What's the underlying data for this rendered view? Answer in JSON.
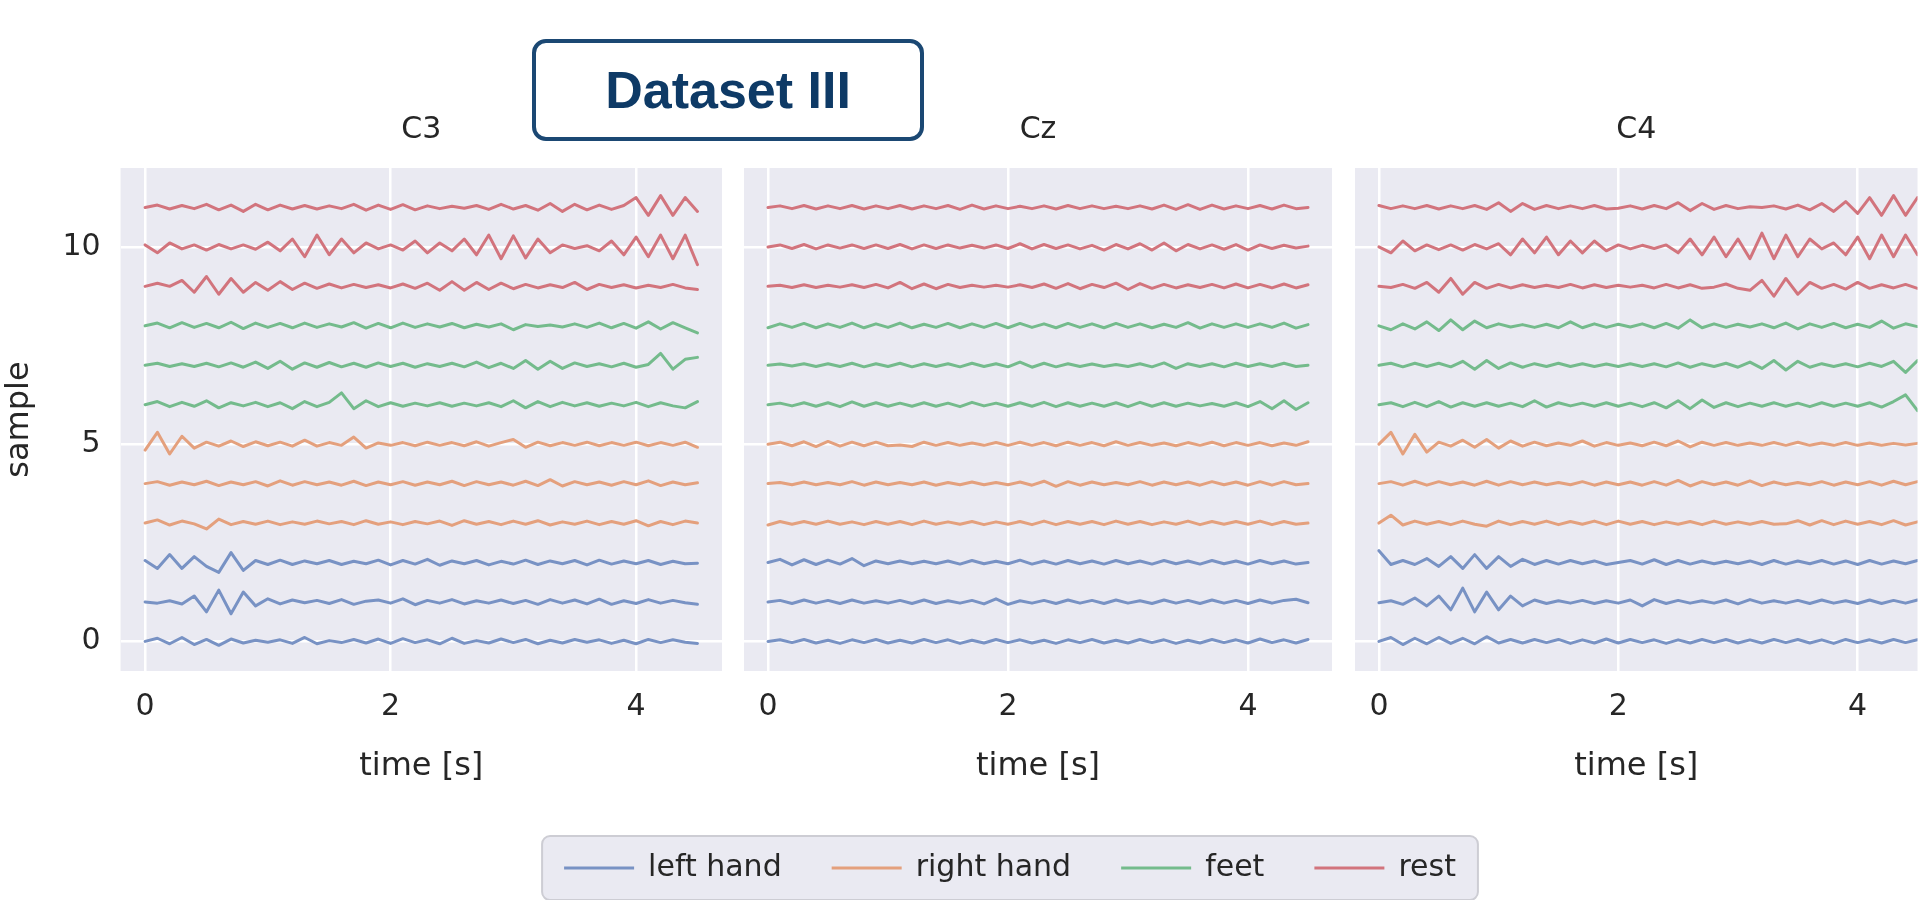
{
  "chart_data": [
    {
      "type": "line",
      "title": "C3",
      "xlabel": "time [s]",
      "ylabel": "sample",
      "annotations": [
        "Dataset III"
      ],
      "grid": true,
      "xlim": [
        -0.2,
        4.7
      ],
      "ylim": [
        -0.75,
        12
      ],
      "xticks": [
        0,
        2,
        4
      ],
      "yticks": [
        0,
        5,
        10
      ],
      "x": [
        0,
        0.1,
        0.2,
        0.3,
        0.4,
        0.5,
        0.6,
        0.7,
        0.8,
        0.9,
        1,
        1.1,
        1.2,
        1.3,
        1.4,
        1.5,
        1.6,
        1.7,
        1.8,
        1.9,
        2,
        2.1,
        2.2,
        2.3,
        2.4,
        2.5,
        2.6,
        2.7,
        2.8,
        2.9,
        3,
        3.1,
        3.2,
        3.3,
        3.4,
        3.5,
        3.6,
        3.7,
        3.8,
        3.9,
        4,
        4.1,
        4.2,
        4.3,
        4.4,
        4.5
      ],
      "series": [
        {
          "color": "#7892c4",
          "values": [
            0,
            0.08,
            -0.06,
            0.1,
            -0.08,
            0.05,
            -0.1,
            0.06,
            -0.04,
            0.03,
            -0.02,
            0.04,
            -0.05,
            0.1,
            -0.06,
            0.02,
            -0.03,
            0.05,
            -0.04,
            0.06,
            -0.05,
            0.07,
            -0.03,
            0.04,
            -0.06,
            0.08,
            -0.05,
            0.02,
            -0.04,
            0.06,
            -0.03,
            0.05,
            -0.06,
            0.03,
            -0.04,
            0.05,
            -0.02,
            0.04,
            -0.05,
            0.03,
            -0.06,
            0.05,
            -0.03,
            0.04,
            -0.02,
            -0.05
          ]
        },
        {
          "color": "#7892c4",
          "values": [
            1,
            0.97,
            1.03,
            0.95,
            1.15,
            0.75,
            1.3,
            0.7,
            1.25,
            0.9,
            1.08,
            0.95,
            1.05,
            0.98,
            1.04,
            0.96,
            1.06,
            0.94,
            1.02,
            1.05,
            0.97,
            1.08,
            0.93,
            1.04,
            0.97,
            1.06,
            0.95,
            1.03,
            0.97,
            1.05,
            0.96,
            1.04,
            0.94,
            1.06,
            0.97,
            1.05,
            0.95,
            1.07,
            0.94,
            1.03,
            0.96,
            1.06,
            0.97,
            1.04,
            0.98,
            0.94
          ]
        },
        {
          "color": "#7892c4",
          "values": [
            2.05,
            1.85,
            2.2,
            1.85,
            2.15,
            1.9,
            1.75,
            2.25,
            1.8,
            2.05,
            1.95,
            2.06,
            1.95,
            2.04,
            1.97,
            2.05,
            1.95,
            2.03,
            1.97,
            2.06,
            1.94,
            2.05,
            1.96,
            2.08,
            1.93,
            2.04,
            1.97,
            2.05,
            1.94,
            2.03,
            1.96,
            2.06,
            1.95,
            2.04,
            1.97,
            2.05,
            1.94,
            2.06,
            1.96,
            2.04,
            1.97,
            2.05,
            1.95,
            2.03,
            1.97,
            1.98
          ]
        },
        {
          "color": "#e4a07d",
          "values": [
            3,
            3.08,
            2.95,
            3.05,
            2.98,
            2.85,
            3.1,
            2.96,
            3.04,
            2.97,
            3.05,
            2.96,
            3.03,
            2.97,
            3.05,
            2.98,
            3.04,
            2.96,
            3.06,
            2.97,
            3.03,
            2.96,
            3.04,
            2.98,
            3.05,
            2.94,
            3.06,
            2.97,
            3.04,
            2.96,
            3.05,
            2.97,
            3.06,
            2.95,
            3.03,
            2.97,
            3.05,
            2.96,
            3.04,
            2.97,
            3.06,
            2.93,
            3.04,
            2.96,
            3.05,
            3
          ]
        },
        {
          "color": "#e4a07d",
          "values": [
            4,
            4.05,
            3.96,
            4.04,
            3.97,
            4.06,
            3.95,
            4.04,
            3.97,
            4.05,
            3.94,
            4.07,
            3.96,
            4.05,
            3.97,
            4.04,
            3.96,
            4.06,
            3.95,
            4.04,
            3.97,
            4.05,
            3.96,
            4.04,
            3.97,
            4.06,
            3.95,
            4.05,
            3.97,
            4.04,
            3.96,
            4.06,
            3.95,
            4.1,
            3.94,
            4.05,
            3.97,
            4.04,
            3.96,
            4.05,
            3.97,
            4.07,
            3.95,
            4.04,
            3.97,
            4.02
          ]
        },
        {
          "color": "#e4a07d",
          "values": [
            4.85,
            5.3,
            4.75,
            5.2,
            4.9,
            5.05,
            4.95,
            5.08,
            4.94,
            5.06,
            4.96,
            5.05,
            4.95,
            5.1,
            4.95,
            5.04,
            4.97,
            5.18,
            4.9,
            5.03,
            4.97,
            5.04,
            4.96,
            5.05,
            4.97,
            5.04,
            4.96,
            5.06,
            4.95,
            5.04,
            5.12,
            4.92,
            5.05,
            4.96,
            5.04,
            4.97,
            5.05,
            4.96,
            5.04,
            4.97,
            5.05,
            4.96,
            5.04,
            4.97,
            5.05,
            4.92
          ]
        },
        {
          "color": "#74bb8c",
          "values": [
            6,
            6.08,
            5.95,
            6.06,
            5.96,
            6.1,
            5.92,
            6.05,
            5.97,
            6.06,
            5.95,
            6.05,
            5.9,
            6.08,
            5.95,
            6.06,
            6.3,
            5.9,
            6.1,
            5.95,
            6.05,
            5.96,
            6.04,
            5.97,
            6.05,
            5.96,
            6.04,
            5.97,
            6.05,
            5.95,
            6.1,
            5.92,
            6.08,
            5.95,
            6.06,
            5.97,
            6.05,
            5.96,
            6.04,
            5.97,
            6.06,
            5.95,
            6.05,
            5.97,
            5.92,
            6.08
          ]
        },
        {
          "color": "#74bb8c",
          "values": [
            7,
            7.05,
            6.97,
            7.04,
            6.97,
            7.05,
            6.96,
            7.06,
            6.95,
            7.08,
            6.92,
            7.1,
            6.9,
            7.06,
            6.95,
            7.07,
            6.96,
            7.05,
            6.95,
            7.06,
            6.97,
            7.05,
            6.95,
            7.04,
            6.97,
            7.05,
            6.96,
            7.08,
            6.94,
            7.05,
            6.92,
            7.12,
            6.9,
            7.1,
            6.92,
            7.06,
            6.97,
            7.04,
            6.96,
            7.05,
            6.95,
            7.02,
            7.3,
            6.9,
            7.15,
            7.2
          ]
        },
        {
          "color": "#74bb8c",
          "values": [
            8,
            8.07,
            7.95,
            8.08,
            7.96,
            8.06,
            7.95,
            8.09,
            7.93,
            8.07,
            7.96,
            8.06,
            7.95,
            8.07,
            7.96,
            8.05,
            7.97,
            8.08,
            7.94,
            8.06,
            7.95,
            8.07,
            7.96,
            8.05,
            7.97,
            8.06,
            7.95,
            8.04,
            7.97,
            8.05,
            7.9,
            8.03,
            7.98,
            8.02,
            7.97,
            8.05,
            7.96,
            8.07,
            7.95,
            8.06,
            7.94,
            8.1,
            7.92,
            8.08,
            7.95,
            7.82
          ]
        },
        {
          "color": "#d2747d",
          "values": [
            9,
            9.08,
            9,
            9.15,
            8.85,
            9.25,
            8.8,
            9.2,
            8.85,
            9.1,
            8.9,
            9.12,
            8.92,
            9.08,
            8.95,
            9.06,
            8.96,
            9.05,
            8.97,
            9.04,
            8.96,
            9.06,
            8.95,
            9.08,
            8.9,
            9.12,
            8.9,
            9.1,
            8.92,
            9.08,
            8.94,
            9.05,
            8.96,
            9.04,
            8.97,
            9.1,
            8.92,
            9.05,
            8.97,
            9.04,
            8.96,
            9.03,
            8.97,
            9.05,
            8.96,
            8.92
          ]
        },
        {
          "color": "#d2747d",
          "values": [
            10.05,
            9.85,
            10.1,
            9.95,
            10.05,
            9.92,
            10.06,
            9.95,
            10.05,
            9.94,
            10.12,
            9.9,
            10.2,
            9.75,
            10.3,
            9.8,
            10.2,
            9.85,
            10.1,
            9.95,
            10.05,
            9.92,
            10.15,
            9.85,
            10.1,
            9.9,
            10.2,
            9.8,
            10.3,
            9.7,
            10.28,
            9.72,
            10.2,
            9.85,
            10.05,
            9.96,
            10.03,
            9.9,
            10.15,
            9.8,
            10.25,
            9.75,
            10.3,
            9.7,
            10.3,
            9.55
          ]
        },
        {
          "color": "#d2747d",
          "values": [
            11,
            11.06,
            10.96,
            11.05,
            10.97,
            11.08,
            10.94,
            11.06,
            10.9,
            11.08,
            10.94,
            11.06,
            10.96,
            11.05,
            10.96,
            11.04,
            10.97,
            11.08,
            10.93,
            11.06,
            10.95,
            11.07,
            10.94,
            11.04,
            10.97,
            11.03,
            10.98,
            11.05,
            10.95,
            11.08,
            10.96,
            11.05,
            10.93,
            11.1,
            10.9,
            11.08,
            10.94,
            11.06,
            10.95,
            11.05,
            11.25,
            10.8,
            11.3,
            10.8,
            11.25,
            10.9
          ]
        }
      ]
    },
    {
      "type": "line",
      "title": "Cz",
      "xlabel": "time [s]",
      "grid": true,
      "legend": "bottom",
      "tick_labels": "x",
      "xlim": [
        -0.2,
        4.7
      ],
      "ylim": [
        -0.75,
        12
      ],
      "xticks": [
        0,
        2,
        4
      ],
      "yticks": [
        0,
        5,
        10
      ],
      "x": [
        0,
        0.1,
        0.2,
        0.3,
        0.4,
        0.5,
        0.6,
        0.7,
        0.8,
        0.9,
        1,
        1.1,
        1.2,
        1.3,
        1.4,
        1.5,
        1.6,
        1.7,
        1.8,
        1.9,
        2,
        2.1,
        2.2,
        2.3,
        2.4,
        2.5,
        2.6,
        2.7,
        2.8,
        2.9,
        3,
        3.1,
        3.2,
        3.3,
        3.4,
        3.5,
        3.6,
        3.7,
        3.8,
        3.9,
        4,
        4.1,
        4.2,
        4.3,
        4.4,
        4.5
      ],
      "series": [
        {
          "name": "left hand",
          "color": "#7892c4",
          "values": [
            0,
            0.04,
            -0.03,
            0.05,
            -0.04,
            0.03,
            -0.05,
            0.04,
            -0.03,
            0.05,
            -0.04,
            0.03,
            -0.04,
            0.05,
            -0.03,
            0.04,
            -0.05,
            0.03,
            -0.04,
            0.05,
            -0.03,
            0.04,
            -0.04,
            0.03,
            -0.05,
            0.04,
            -0.03,
            0.05,
            -0.04,
            0.03,
            -0.04,
            0.05,
            -0.03,
            0.04,
            -0.05,
            0.03,
            -0.04,
            0.05,
            -0.03,
            0.04,
            -0.04,
            0.06,
            -0.03,
            0.04,
            -0.04,
            0.05
          ]
        },
        {
          "color": "#7892c4",
          "values": [
            1,
            1.04,
            0.96,
            1.05,
            0.97,
            1.04,
            0.96,
            1.05,
            0.97,
            1.03,
            0.97,
            1.04,
            0.96,
            1.05,
            0.96,
            1.03,
            0.97,
            1.04,
            0.95,
            1.08,
            0.94,
            1.03,
            0.97,
            1.04,
            0.96,
            1.05,
            0.97,
            1.04,
            0.96,
            1.05,
            0.97,
            1.03,
            0.96,
            1.05,
            0.97,
            1.04,
            0.96,
            1.05,
            0.97,
            1.04,
            0.96,
            1.05,
            0.97,
            1.04,
            1.07,
            0.98
          ]
        },
        {
          "color": "#7892c4",
          "values": [
            2,
            2.08,
            1.94,
            2.07,
            1.95,
            2.06,
            1.96,
            2.1,
            1.92,
            2.04,
            1.97,
            2.04,
            1.97,
            2.03,
            1.97,
            2.04,
            1.96,
            2.05,
            1.97,
            2.03,
            1.97,
            2.06,
            1.96,
            2.04,
            1.96,
            2.05,
            1.97,
            2.04,
            1.96,
            2.05,
            1.97,
            2.04,
            1.96,
            2.05,
            1.97,
            2.04,
            1.96,
            2.05,
            1.97,
            2.04,
            1.96,
            2.05,
            1.97,
            2.04,
            1.96,
            2
          ]
        },
        {
          "name": "right hand",
          "color": "#e4a07d",
          "values": [
            2.95,
            3.04,
            2.97,
            3.04,
            2.97,
            3.05,
            2.97,
            3.03,
            2.96,
            3.04,
            2.97,
            3.04,
            2.96,
            3.05,
            2.97,
            3.03,
            2.97,
            3.04,
            2.96,
            3.03,
            2.97,
            3.04,
            2.96,
            3.05,
            2.96,
            3.04,
            2.97,
            3.04,
            2.96,
            3.05,
            2.97,
            3.04,
            2.96,
            3.03,
            2.97,
            3.05,
            2.96,
            3.04,
            2.97,
            3.04,
            2.97,
            3.05,
            2.96,
            3.04,
            2.97,
            3
          ]
        },
        {
          "color": "#e4a07d",
          "values": [
            4,
            4.03,
            3.97,
            4.04,
            3.97,
            4.03,
            3.97,
            4.05,
            3.96,
            4.04,
            3.97,
            4.03,
            3.97,
            4.04,
            3.96,
            4.03,
            3.97,
            4.04,
            3.97,
            4.03,
            3.97,
            4.04,
            3.96,
            4.06,
            3.93,
            4.05,
            3.96,
            4.04,
            3.97,
            4.03,
            3.97,
            4.05,
            3.96,
            4.04,
            3.97,
            4.04,
            3.96,
            4.05,
            3.97,
            4.04,
            3.96,
            4.05,
            3.96,
            4.05,
            3.97,
            4
          ]
        },
        {
          "color": "#e4a07d",
          "values": [
            5,
            5.05,
            4.96,
            5.06,
            4.94,
            5.07,
            4.95,
            5.05,
            4.96,
            5.05,
            4.96,
            4.98,
            4.94,
            5.05,
            4.97,
            5.04,
            4.97,
            5.03,
            4.97,
            5.04,
            4.97,
            5.05,
            4.97,
            5.04,
            4.96,
            5.05,
            4.97,
            5.04,
            4.96,
            5.06,
            4.97,
            5.04,
            4.97,
            5.03,
            4.96,
            5.04,
            4.97,
            5.05,
            4.96,
            5.04,
            4.97,
            5.04,
            4.96,
            5.03,
            4.97,
            5.06
          ]
        },
        {
          "name": "feet",
          "color": "#74bb8c",
          "values": [
            6,
            6.04,
            5.97,
            6.05,
            5.96,
            6.05,
            5.95,
            6.07,
            5.96,
            6.05,
            5.96,
            6.04,
            5.96,
            6.05,
            5.96,
            6.04,
            5.95,
            6.06,
            5.97,
            6.04,
            5.96,
            6.05,
            5.96,
            6.06,
            5.95,
            6.05,
            5.96,
            6.04,
            5.96,
            6.05,
            5.95,
            6.06,
            5.96,
            6.05,
            5.96,
            6.04,
            5.97,
            6.03,
            5.96,
            6.05,
            5.95,
            6.08,
            5.9,
            6.1,
            5.88,
            6.05
          ]
        },
        {
          "color": "#74bb8c",
          "values": [
            7,
            7.03,
            6.98,
            7.04,
            6.97,
            7.04,
            6.97,
            7.05,
            6.96,
            7.04,
            6.97,
            7.05,
            6.96,
            7.04,
            6.97,
            7.04,
            6.96,
            7.05,
            6.97,
            7.04,
            6.96,
            7.08,
            6.95,
            7.05,
            6.96,
            7.04,
            6.97,
            7.03,
            6.97,
            7.02,
            6.97,
            7.04,
            6.96,
            7.06,
            6.92,
            7.04,
            6.97,
            7.04,
            6.96,
            7.05,
            6.97,
            7.04,
            6.97,
            7.05,
            6.97,
            7
          ]
        },
        {
          "color": "#74bb8c",
          "values": [
            7.95,
            8.05,
            7.96,
            8.06,
            7.95,
            8.05,
            7.96,
            8.07,
            7.95,
            8.05,
            7.96,
            8.07,
            7.95,
            8.04,
            7.96,
            8.06,
            7.95,
            8.05,
            7.96,
            8.06,
            7.95,
            8.06,
            7.96,
            8.05,
            7.95,
            8.06,
            7.96,
            8.05,
            7.95,
            8.06,
            7.96,
            8.05,
            7.95,
            8.04,
            7.96,
            8.08,
            7.94,
            8.05,
            7.96,
            8.05,
            7.96,
            8.05,
            7.96,
            8.07,
            7.94,
            8.03
          ]
        },
        {
          "name": "rest",
          "color": "#d2747d",
          "values": [
            9,
            9.03,
            8.97,
            9.04,
            8.97,
            9.03,
            8.98,
            9.04,
            8.97,
            9.05,
            8.96,
            9.1,
            8.94,
            9.06,
            8.94,
            9.05,
            8.97,
            9.03,
            8.98,
            9.03,
            8.98,
            9.04,
            8.97,
            9.06,
            8.95,
            9.07,
            8.94,
            9.05,
            8.97,
            9.08,
            8.92,
            9.07,
            8.95,
            9.05,
            8.96,
            9.04,
            8.97,
            9.05,
            8.96,
            9.06,
            8.96,
            9.05,
            8.96,
            9.06,
            8.96,
            9.04
          ]
        },
        {
          "color": "#d2747d",
          "values": [
            10,
            10.05,
            9.96,
            10.06,
            9.95,
            10.05,
            9.97,
            10.05,
            9.96,
            10.05,
            9.96,
            10.06,
            9.95,
            10.05,
            9.96,
            10.05,
            9.97,
            10.04,
            9.97,
            10.05,
            9.96,
            10.08,
            9.95,
            10.06,
            9.96,
            10.05,
            9.95,
            10.04,
            9.92,
            10.06,
            9.95,
            10.08,
            9.92,
            10.1,
            9.9,
            10.06,
            9.95,
            10.05,
            9.94,
            10.06,
            9.92,
            10.05,
            9.96,
            10.04,
            9.97,
            10.02
          ]
        },
        {
          "color": "#d2747d",
          "values": [
            11,
            11.04,
            10.97,
            11.05,
            10.96,
            11.04,
            10.97,
            11.05,
            10.96,
            11.04,
            10.97,
            11.05,
            10.96,
            11.04,
            10.97,
            11.05,
            10.95,
            11.06,
            10.96,
            11.04,
            10.97,
            11.03,
            10.97,
            11.04,
            10.96,
            11.05,
            10.97,
            11.04,
            10.97,
            11.03,
            10.97,
            11.04,
            10.96,
            11.06,
            10.95,
            11.07,
            10.95,
            11.06,
            10.96,
            11.04,
            10.97,
            11.05,
            10.96,
            11.06,
            10.97,
            11
          ]
        }
      ]
    },
    {
      "type": "line",
      "title": "C4",
      "xlabel": "time [s]",
      "grid": true,
      "tick_labels": "x",
      "xlim": [
        -0.2,
        4.5
      ],
      "ylim": [
        -0.75,
        12
      ],
      "xticks": [
        0,
        2,
        4
      ],
      "yticks": [
        0,
        5,
        10
      ],
      "x": [
        0,
        0.1,
        0.2,
        0.3,
        0.4,
        0.5,
        0.6,
        0.7,
        0.8,
        0.9,
        1,
        1.1,
        1.2,
        1.3,
        1.4,
        1.5,
        1.6,
        1.7,
        1.8,
        1.9,
        2,
        2.1,
        2.2,
        2.3,
        2.4,
        2.5,
        2.6,
        2.7,
        2.8,
        2.9,
        3,
        3.1,
        3.2,
        3.3,
        3.4,
        3.5,
        3.6,
        3.7,
        3.8,
        3.9,
        4,
        4.1,
        4.2,
        4.3,
        4.4,
        4.5
      ],
      "series": [
        {
          "color": "#7892c4",
          "values": [
            0,
            0.1,
            -0.08,
            0.08,
            -0.06,
            0.1,
            -0.05,
            0.08,
            -0.06,
            0.12,
            -0.04,
            0.05,
            -0.04,
            0.05,
            -0.03,
            0.05,
            -0.05,
            0.04,
            -0.04,
            0.06,
            -0.04,
            0.05,
            -0.03,
            0.04,
            -0.05,
            0.04,
            -0.04,
            0.05,
            -0.03,
            0.05,
            -0.04,
            0.04,
            -0.04,
            0.05,
            -0.03,
            0.05,
            -0.04,
            0.04,
            -0.05,
            0.05,
            -0.03,
            0.04,
            -0.04,
            0.05,
            -0.03,
            0.04
          ]
        },
        {
          "color": "#7892c4",
          "values": [
            0.98,
            1.03,
            0.94,
            1.1,
            0.9,
            1.15,
            0.8,
            1.35,
            0.75,
            1.25,
            0.8,
            1.15,
            0.9,
            1.05,
            0.96,
            1.03,
            0.97,
            1.04,
            0.96,
            1.03,
            0.97,
            1.05,
            0.9,
            1.06,
            0.96,
            1.04,
            0.97,
            1.03,
            0.97,
            1.05,
            0.95,
            1.06,
            0.97,
            1.03,
            0.97,
            1.04,
            0.96,
            1.05,
            0.97,
            1.03,
            0.96,
            1.05,
            0.96,
            1.04,
            0.97,
            1.05
          ]
        },
        {
          "color": "#7892c4",
          "values": [
            2.3,
            1.95,
            2.05,
            1.95,
            2.1,
            1.9,
            2.15,
            1.85,
            2.2,
            1.85,
            2.15,
            1.9,
            2.08,
            1.95,
            2.05,
            1.96,
            2.05,
            1.97,
            2.04,
            1.95,
            2,
            2.05,
            1.96,
            2.07,
            1.95,
            2.05,
            1.96,
            2.04,
            1.97,
            2.03,
            1.97,
            2.04,
            1.95,
            2.05,
            1.96,
            2.04,
            1.97,
            2.05,
            1.96,
            2.04,
            1.95,
            2.05,
            1.96,
            2.04,
            1.97,
            2.05
          ]
        },
        {
          "color": "#e4a07d",
          "values": [
            3,
            3.2,
            2.95,
            3.05,
            2.97,
            3.04,
            2.96,
            3.05,
            2.97,
            2.92,
            3.05,
            2.96,
            3.04,
            2.97,
            3.05,
            2.96,
            3.04,
            2.97,
            3.05,
            2.96,
            3.05,
            2.97,
            3.04,
            2.96,
            3.03,
            2.97,
            3.04,
            2.96,
            3.05,
            2.97,
            3.03,
            2.97,
            3.04,
            2.97,
            2.98,
            3.06,
            2.95,
            3.06,
            2.96,
            3.05,
            2.97,
            3.04,
            2.96,
            3.06,
            2.95,
            3.03
          ]
        },
        {
          "color": "#e4a07d",
          "values": [
            4,
            4.05,
            3.96,
            4.06,
            3.96,
            4.05,
            3.97,
            4.04,
            3.96,
            4.06,
            3.96,
            4.05,
            3.97,
            4.04,
            3.97,
            4.03,
            3.97,
            4.05,
            3.96,
            4.04,
            3.97,
            4.04,
            3.96,
            4.05,
            3.96,
            4.08,
            3.94,
            4.05,
            3.97,
            4.04,
            3.96,
            4.07,
            3.95,
            4.04,
            3.97,
            4.03,
            3.97,
            4.05,
            3.96,
            4.04,
            3.97,
            4.05,
            3.96,
            4.06,
            3.97,
            4.05
          ]
        },
        {
          "color": "#e4a07d",
          "values": [
            5,
            5.3,
            4.75,
            5.25,
            4.8,
            5.05,
            4.95,
            5.1,
            4.92,
            5.12,
            4.9,
            5.08,
            4.95,
            5.05,
            4.96,
            5.03,
            4.97,
            5.08,
            4.95,
            5.04,
            4.97,
            5.03,
            4.96,
            5.05,
            4.96,
            5.08,
            4.93,
            5.05,
            4.97,
            5.04,
            4.97,
            5.03,
            4.97,
            5.04,
            4.97,
            5.05,
            4.97,
            5.03,
            4.97,
            5.04,
            4.97,
            5.03,
            4.97,
            5.02,
            4.98,
            5.02
          ]
        },
        {
          "color": "#74bb8c",
          "values": [
            6,
            6.05,
            5.95,
            6.06,
            5.95,
            6.08,
            5.94,
            6.05,
            5.96,
            6.05,
            5.96,
            6.04,
            5.95,
            6.1,
            5.94,
            6.05,
            5.97,
            6.04,
            5.96,
            6.05,
            5.96,
            6.04,
            5.95,
            6.05,
            5.92,
            6.1,
            5.9,
            6.12,
            5.93,
            6.05,
            5.95,
            6.04,
            5.96,
            6.05,
            5.96,
            6.04,
            5.95,
            6.05,
            5.96,
            6.04,
            5.96,
            6.05,
            5.94,
            6.08,
            6.25,
            5.85
          ]
        },
        {
          "color": "#74bb8c",
          "values": [
            7,
            7.05,
            6.96,
            7.05,
            6.97,
            7.05,
            6.96,
            7.1,
            6.9,
            7.12,
            6.92,
            7.06,
            6.95,
            7.04,
            6.97,
            7.05,
            6.97,
            7.04,
            6.97,
            7.03,
            6.97,
            7.04,
            6.97,
            7.04,
            6.96,
            7.06,
            6.95,
            7.04,
            6.97,
            7.05,
            6.95,
            7.08,
            6.92,
            7.12,
            6.88,
            7.1,
            6.95,
            7.04,
            6.97,
            7.04,
            6.96,
            7.05,
            6.97,
            7.1,
            6.82,
            7.12
          ]
        },
        {
          "color": "#74bb8c",
          "values": [
            8,
            7.9,
            8.05,
            7.92,
            8.1,
            7.88,
            8.15,
            7.9,
            8.12,
            7.95,
            8.05,
            7.97,
            8.03,
            7.96,
            8.04,
            7.95,
            8.1,
            7.95,
            8.05,
            7.96,
            8.04,
            7.97,
            8.05,
            7.95,
            8.06,
            7.94,
            8.15,
            7.95,
            8.05,
            7.96,
            8.04,
            7.97,
            8.05,
            7.95,
            8.07,
            7.92,
            8.05,
            7.96,
            8.06,
            7.95,
            8.04,
            7.96,
            8.12,
            7.94,
            8.05,
            7.98
          ]
        },
        {
          "color": "#d2747d",
          "values": [
            9,
            8.97,
            9.05,
            8.95,
            9.1,
            8.85,
            9.2,
            8.8,
            9.1,
            8.95,
            9.05,
            8.96,
            9.04,
            8.97,
            9.03,
            8.97,
            9.05,
            8.96,
            9.04,
            8.97,
            9.03,
            8.98,
            9.03,
            8.96,
            9.05,
            8.96,
            9.04,
            8.95,
            8.98,
            9.06,
            8.95,
            8.9,
            9.15,
            8.75,
            9.2,
            8.8,
            9.1,
            8.95,
            9.05,
            8.93,
            9.1,
            8.95,
            9.04,
            8.96,
            9.05,
            8.95
          ]
        },
        {
          "color": "#d2747d",
          "values": [
            10,
            9.85,
            10.15,
            9.9,
            10.05,
            9.93,
            10.05,
            9.92,
            10.06,
            9.95,
            10.08,
            9.8,
            10.2,
            9.85,
            10.25,
            9.8,
            10.15,
            9.85,
            10.15,
            9.9,
            10.05,
            9.95,
            10.04,
            9.96,
            10.05,
            9.85,
            10.2,
            9.8,
            10.25,
            9.75,
            10.2,
            9.7,
            10.35,
            9.7,
            10.3,
            9.75,
            10.2,
            9.95,
            10.1,
            9.8,
            10.25,
            9.7,
            10.3,
            9.75,
            10.3,
            9.8
          ]
        },
        {
          "color": "#d2747d",
          "values": [
            11.05,
            10.97,
            11.04,
            10.97,
            11.05,
            10.96,
            11.04,
            10.97,
            11.05,
            10.95,
            11.12,
            10.9,
            11.1,
            10.95,
            11.05,
            10.97,
            11.04,
            10.97,
            11.05,
            10.96,
            10.98,
            11.04,
            10.96,
            11.05,
            10.97,
            11.12,
            10.92,
            11.1,
            10.95,
            11.05,
            10.97,
            11.02,
            11,
            11.04,
            10.96,
            11.06,
            10.94,
            11.1,
            10.9,
            11.15,
            10.85,
            11.25,
            10.8,
            11.3,
            10.8,
            11.25
          ]
        }
      ]
    }
  ]
}
